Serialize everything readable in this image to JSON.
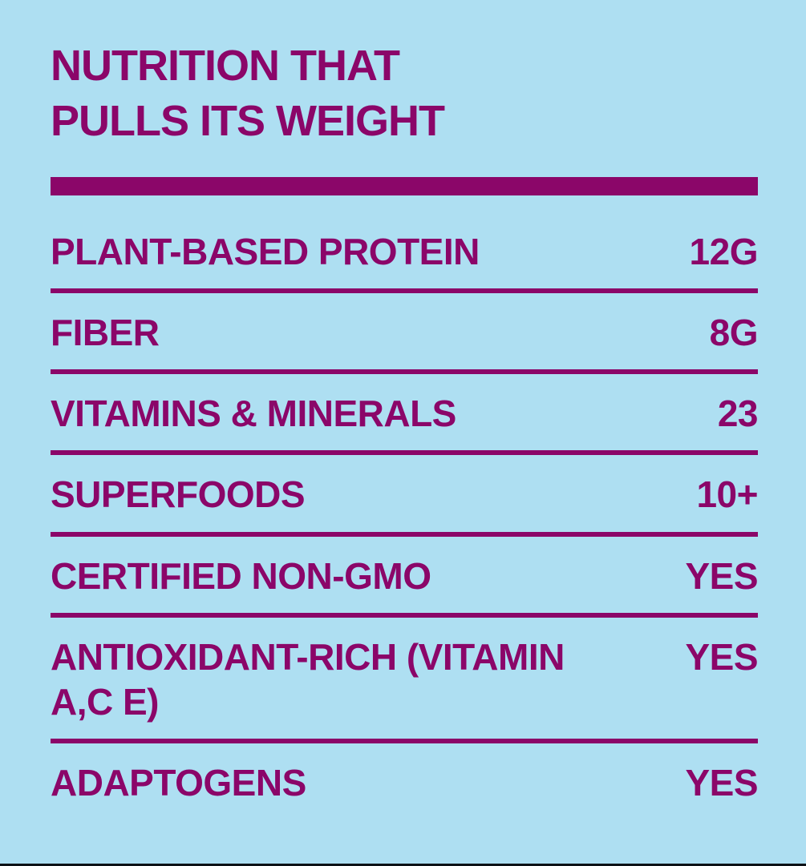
{
  "page": {
    "background_color": "#AEDFF2",
    "accent_color": "#8B0669",
    "footer_line_color": "#0D1217"
  },
  "header": {
    "title_lines": [
      "NUTRITION THAT",
      "PULLS ITS WEIGHT"
    ]
  },
  "nutrition_table": {
    "rows": [
      {
        "label": "PLANT-BASED PROTEIN",
        "value": "12G"
      },
      {
        "label": "FIBER",
        "value": "8G"
      },
      {
        "label": "VITAMINS & MINERALS",
        "value": "23"
      },
      {
        "label": "SUPERFOODS",
        "value": "10+"
      },
      {
        "label": "CERTIFIED NON-GMO",
        "value": "YES"
      },
      {
        "label": "ANTIOXIDANT-RICH (VITAMIN A,C E)",
        "value": "YES"
      },
      {
        "label": "ADAPTOGENS",
        "value": "YES"
      }
    ]
  }
}
